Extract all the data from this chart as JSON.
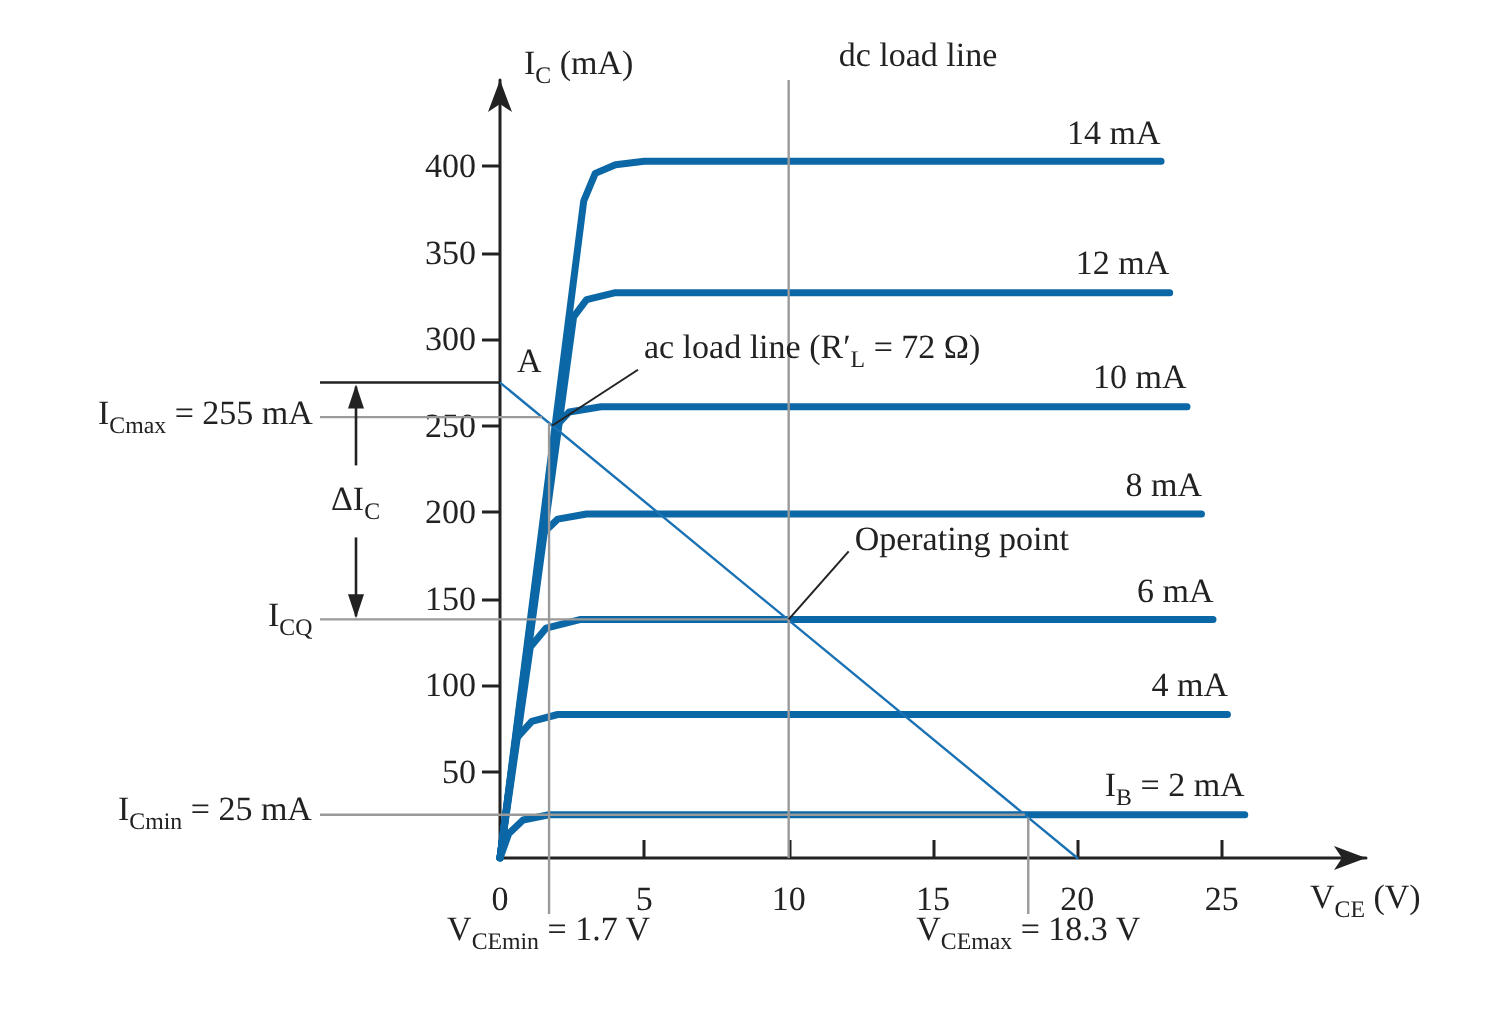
{
  "chart_data": {
    "type": "line",
    "xlabel": "V$_{CE}$ (V)",
    "ylabel": "I$_{C}$ (mA)",
    "xlim": [
      0,
      30
    ],
    "ylim": [
      0,
      450
    ],
    "xticks": [
      0,
      5,
      10,
      15,
      20,
      25
    ],
    "yticks": [
      50,
      100,
      150,
      200,
      250,
      300,
      350,
      400
    ],
    "grid": false,
    "legend": false,
    "marker": "none",
    "line_style": "solid",
    "series": [
      {
        "name": "14 mA",
        "color": "#0b67a6",
        "x": [
          0,
          2.9,
          3.3,
          4,
          5,
          22.9
        ],
        "values": [
          0,
          380,
          396,
          401,
          403,
          403
        ]
      },
      {
        "name": "12 mA",
        "color": "#0b67a6",
        "x": [
          0,
          2.55,
          3,
          4,
          23.2
        ],
        "values": [
          0,
          313,
          323,
          327,
          327
        ]
      },
      {
        "name": "10 mA",
        "color": "#0b67a6",
        "x": [
          0,
          1.95,
          2.4,
          3.5,
          23.8
        ],
        "values": [
          0,
          250,
          258,
          261,
          261
        ]
      },
      {
        "name": "8 mA",
        "color": "#0b67a6",
        "x": [
          0,
          1.5,
          2,
          3,
          24.3
        ],
        "values": [
          0,
          188,
          196,
          199,
          199
        ]
      },
      {
        "name": "6 mA",
        "color": "#0b67a6",
        "x": [
          0,
          1.05,
          1.6,
          2.8,
          24.7
        ],
        "values": [
          0,
          122,
          133,
          138,
          138
        ]
      },
      {
        "name": "4 mA",
        "color": "#0b67a6",
        "x": [
          0,
          0.56,
          1.1,
          2,
          25.2
        ],
        "values": [
          0,
          69,
          79,
          83,
          83
        ]
      },
      {
        "name": "I$_{B}$ = 2 mA",
        "color": "#0b67a6",
        "x": [
          0,
          0.3,
          0.8,
          1.7,
          25.8
        ],
        "values": [
          0,
          14,
          22,
          25,
          25
        ]
      },
      {
        "color": "#1a72b5",
        "x": [
          0,
          20
        ],
        "values": [
          275,
          0
        ]
      }
    ],
    "ref_lines": [
      {
        "axis": "y",
        "value": 255,
        "label": "I$_{Cmax}$ = 255 mA",
        "color": "#9a9a9a"
      },
      {
        "axis": "y",
        "value": 138,
        "label": "I$_{CQ}$",
        "color": "#9a9a9a"
      },
      {
        "axis": "y",
        "value": 25,
        "label": "I$_{Cmin}$ = 25 mA",
        "color": "#9a9a9a"
      },
      {
        "axis": "x",
        "value": 1.7,
        "label": "V$_{CEmin}$ = 1.7 V",
        "color": "#9a9a9a"
      },
      {
        "axis": "x",
        "value": 18.3,
        "label": "V$_{CEmax}$ = 18.3 V",
        "color": "#9a9a9a"
      },
      {
        "axis": "x",
        "value": 10,
        "color": "#9a9a9a"
      }
    ],
    "annotations": [
      {
        "text": "A",
        "x": 1.7,
        "y": 255
      },
      {
        "text": "ac load line  (R′$_{L}$ = 72 Ω)",
        "x": 1.8,
        "y": 250
      },
      {
        "text": "Operating point",
        "x": 10,
        "y": 138
      },
      "ΔI$_{C}$",
      {
        "text": "dc load line",
        "x": 10,
        "y": 450
      }
    ]
  }
}
